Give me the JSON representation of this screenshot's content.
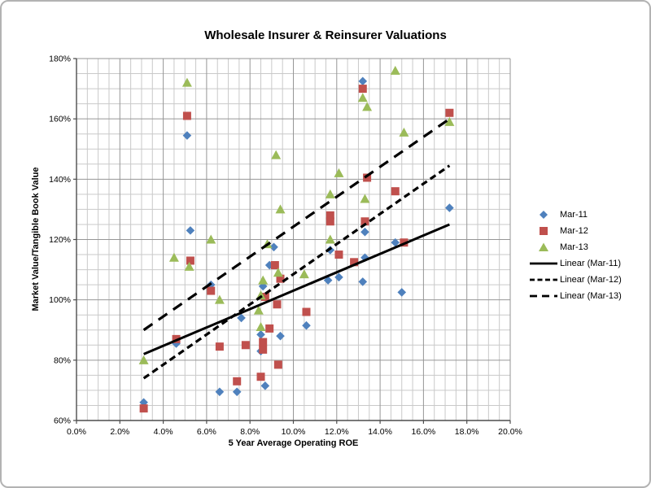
{
  "chart_data": {
    "type": "scatter",
    "title": "Wholesale Insurer & Reinsurer Valuations",
    "xlabel": "5 Year Average Operating ROE",
    "ylabel": "Market Value/Tangible Book Value",
    "xlim": [
      0,
      20
    ],
    "ylim": [
      60,
      180
    ],
    "x_major_step": 2,
    "x_minor_step": 0.5,
    "y_major_step": 20,
    "y_minor_step": 5,
    "grid": true,
    "legend_position": "right",
    "x_tick_labels": [
      "0.0%",
      "2.0%",
      "4.0%",
      "6.0%",
      "8.0%",
      "10.0%",
      "12.0%",
      "14.0%",
      "16.0%",
      "18.0%",
      "20.0%"
    ],
    "y_tick_labels": [
      "60%",
      "80%",
      "100%",
      "120%",
      "140%",
      "160%",
      "180%"
    ],
    "colors": {
      "mar11": "#4F81BD",
      "mar12": "#C0504D",
      "mar13": "#9BBB59",
      "trendline": "#000000",
      "grid_minor": "#c9c9c9",
      "grid_major": "#969696",
      "axis": "#4d4d4d"
    },
    "series": [
      {
        "name": "Mar-11",
        "marker": "diamond",
        "color": "#4F81BD",
        "points": [
          [
            3.1,
            66
          ],
          [
            4.6,
            85.5
          ],
          [
            5.1,
            154.5
          ],
          [
            5.25,
            123
          ],
          [
            6.2,
            105
          ],
          [
            6.6,
            69.5
          ],
          [
            7.4,
            69.5
          ],
          [
            7.6,
            94
          ],
          [
            8.5,
            88.5
          ],
          [
            8.5,
            83
          ],
          [
            8.6,
            104.5
          ],
          [
            8.7,
            71.5
          ],
          [
            8.9,
            111.5
          ],
          [
            9.1,
            117.5
          ],
          [
            9.4,
            88
          ],
          [
            10.6,
            91.5
          ],
          [
            11.6,
            106.5
          ],
          [
            11.7,
            116.5
          ],
          [
            12.1,
            107.5
          ],
          [
            13.2,
            172.5
          ],
          [
            13.2,
            106
          ],
          [
            13.3,
            122.5
          ],
          [
            13.3,
            114
          ],
          [
            14.7,
            119
          ],
          [
            15.0,
            102.5
          ],
          [
            17.2,
            130.5
          ]
        ]
      },
      {
        "name": "Mar-12",
        "marker": "square",
        "color": "#C0504D",
        "points": [
          [
            3.1,
            64
          ],
          [
            4.6,
            87
          ],
          [
            5.1,
            161
          ],
          [
            5.25,
            113
          ],
          [
            6.2,
            103
          ],
          [
            6.6,
            84.5
          ],
          [
            7.4,
            73
          ],
          [
            7.8,
            85
          ],
          [
            8.5,
            74.5
          ],
          [
            8.6,
            86
          ],
          [
            8.6,
            83.5
          ],
          [
            8.7,
            101
          ],
          [
            8.9,
            90.5
          ],
          [
            9.15,
            111.5
          ],
          [
            9.25,
            98.5
          ],
          [
            9.3,
            78.5
          ],
          [
            9.4,
            107
          ],
          [
            10.6,
            96
          ],
          [
            11.7,
            128
          ],
          [
            11.7,
            126
          ],
          [
            12.1,
            115
          ],
          [
            12.8,
            112.5
          ],
          [
            13.2,
            170
          ],
          [
            13.3,
            126
          ],
          [
            13.4,
            140.5
          ],
          [
            14.7,
            136
          ],
          [
            15.1,
            119
          ],
          [
            17.2,
            162
          ]
        ]
      },
      {
        "name": "Mar-13",
        "marker": "triangle",
        "color": "#9BBB59",
        "points": [
          [
            3.1,
            80
          ],
          [
            4.5,
            114
          ],
          [
            5.1,
            172
          ],
          [
            5.2,
            111
          ],
          [
            6.2,
            120
          ],
          [
            6.6,
            100
          ],
          [
            8.4,
            96.5
          ],
          [
            8.5,
            101.5
          ],
          [
            8.5,
            91
          ],
          [
            8.6,
            106.5
          ],
          [
            8.8,
            118.5
          ],
          [
            9.2,
            148
          ],
          [
            9.3,
            109
          ],
          [
            9.4,
            130
          ],
          [
            10.5,
            108.5
          ],
          [
            11.7,
            135
          ],
          [
            11.7,
            120
          ],
          [
            12.1,
            142
          ],
          [
            13.2,
            167
          ],
          [
            13.3,
            133.5
          ],
          [
            13.4,
            164
          ],
          [
            14.7,
            176
          ],
          [
            15.1,
            155.5
          ],
          [
            17.2,
            159
          ]
        ]
      }
    ],
    "trendlines": [
      {
        "name": "Linear (Mar-11)",
        "style": "solid",
        "color": "#000000",
        "from": [
          3.1,
          82
        ],
        "to": [
          17.2,
          125
        ]
      },
      {
        "name": "Linear (Mar-12)",
        "style": "dash",
        "color": "#000000",
        "from": [
          3.1,
          74
        ],
        "to": [
          17.2,
          144.5
        ]
      },
      {
        "name": "Linear (Mar-13)",
        "style": "longdash",
        "color": "#000000",
        "from": [
          3.1,
          90
        ],
        "to": [
          17.2,
          160
        ]
      }
    ],
    "legend_items": [
      {
        "label": "Mar-11",
        "swatch": "diamond",
        "color": "#4F81BD"
      },
      {
        "label": "Mar-12",
        "swatch": "square",
        "color": "#C0504D"
      },
      {
        "label": "Mar-13",
        "swatch": "triangle",
        "color": "#9BBB59"
      },
      {
        "label": "Linear (Mar-11)",
        "swatch": "line-solid",
        "color": "#000000"
      },
      {
        "label": "Linear (Mar-12)",
        "swatch": "line-dash",
        "color": "#000000"
      },
      {
        "label": "Linear (Mar-13)",
        "swatch": "line-longdash",
        "color": "#000000"
      }
    ]
  }
}
